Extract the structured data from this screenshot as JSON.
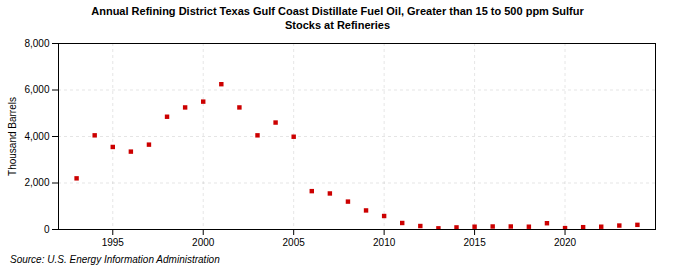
{
  "chart_data": {
    "type": "scatter",
    "title": "Annual Refining District Texas Gulf Coast Distillate Fuel Oil, Greater than 15 to 500 ppm Sulfur\nStocks at Refineries",
    "ylabel": "Thousand Barrels",
    "source": "Source: U.S. Energy Information Administration",
    "x": [
      1993,
      1994,
      1995,
      1996,
      1997,
      1998,
      1999,
      2000,
      2001,
      2002,
      2003,
      2004,
      2005,
      2006,
      2007,
      2008,
      2009,
      2010,
      2011,
      2012,
      2013,
      2014,
      2015,
      2016,
      2017,
      2018,
      2019,
      2020,
      2021,
      2022,
      2023,
      2024
    ],
    "values": [
      2200,
      4050,
      3550,
      3350,
      3650,
      4850,
      5250,
      5500,
      6250,
      5250,
      4050,
      4600,
      3990,
      1650,
      1550,
      1200,
      820,
      580,
      280,
      150,
      50,
      90,
      120,
      130,
      130,
      120,
      270,
      60,
      100,
      120,
      170,
      200
    ],
    "color": "#cc0000",
    "marker": "square",
    "xlim": [
      1992,
      2025
    ],
    "xticks": [
      1995,
      2000,
      2005,
      2010,
      2015,
      2020
    ],
    "ylim": [
      0,
      8000
    ],
    "yticks": [
      0,
      {
        "value": 2000,
        "label": "2,000"
      },
      {
        "value": 4000,
        "label": "4,000"
      },
      {
        "value": 6000,
        "label": "6,000"
      },
      {
        "value": 8000,
        "label": "8,000"
      }
    ],
    "grid": true
  }
}
